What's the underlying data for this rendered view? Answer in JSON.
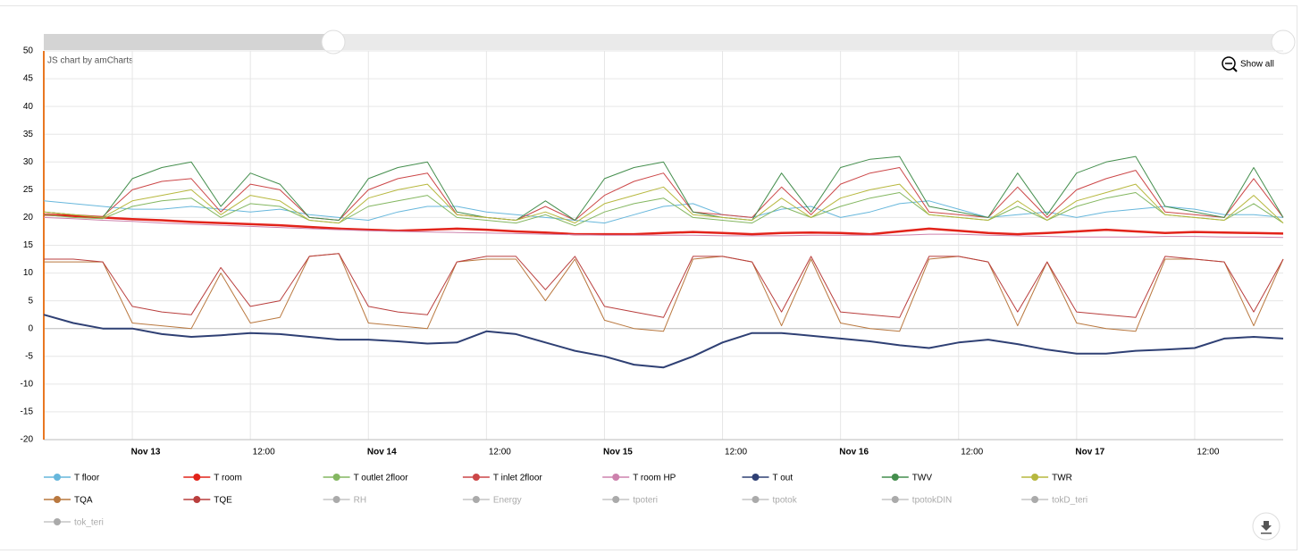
{
  "chart_data": {
    "type": "line",
    "credit": "JS chart by amCharts",
    "zoom_button": "Show all",
    "categories": [
      null,
      null,
      null,
      "Nov 13",
      null,
      null,
      null,
      "12:00",
      null,
      null,
      null,
      "Nov 14",
      null,
      null,
      null,
      "12:00",
      null,
      null,
      null,
      "Nov 15",
      null,
      null,
      null,
      "12:00",
      null,
      null,
      null,
      "Nov 16",
      null,
      null,
      null,
      "12:00",
      null,
      null,
      null,
      "Nov 17",
      null,
      null,
      null,
      "12:00",
      null,
      null,
      null
    ],
    "ylim": [
      -20,
      50
    ],
    "yticks": [
      -20,
      -15,
      -10,
      -5,
      0,
      5,
      10,
      15,
      20,
      25,
      30,
      35,
      40,
      45,
      50
    ],
    "grid": true,
    "series": [
      {
        "name": "T floor",
        "color": "#67b7dc",
        "values": [
          23,
          22.5,
          22,
          21.5,
          21.5,
          22,
          21.5,
          21,
          21.5,
          20.5,
          20,
          19.5,
          21,
          22,
          22,
          21,
          20.5,
          20,
          19.5,
          19,
          20.5,
          22,
          22.5,
          20.5,
          20,
          21.5,
          22,
          20,
          21,
          22.5,
          23,
          21.5,
          20,
          20.5,
          21,
          20,
          21,
          21.5,
          22,
          21.5,
          20.5,
          20.5,
          20
        ]
      },
      {
        "name": "T room",
        "color": "#e2231a",
        "values": [
          20.5,
          20.3,
          20,
          19.7,
          19.5,
          19.2,
          19,
          18.8,
          18.6,
          18.3,
          18,
          17.8,
          17.6,
          17.8,
          18,
          17.8,
          17.5,
          17.3,
          17,
          17,
          17,
          17.2,
          17.4,
          17.2,
          17,
          17.2,
          17.3,
          17.2,
          17,
          17.5,
          18,
          17.6,
          17.2,
          17,
          17.2,
          17.5,
          17.8,
          17.5,
          17.2,
          17.4,
          17.3,
          17.2,
          17.1
        ]
      },
      {
        "name": "T outlet 2floor",
        "color": "#84b761",
        "values": [
          20.5,
          20,
          19.8,
          22,
          23,
          23.5,
          20,
          22.5,
          22,
          19.5,
          19,
          22,
          23,
          24,
          20,
          19.5,
          19,
          20.5,
          18.5,
          21,
          22.5,
          23.5,
          20,
          19.5,
          19,
          22,
          20,
          22,
          23.5,
          24.5,
          20.5,
          20,
          19.5,
          22,
          19.5,
          22,
          23.5,
          24.5,
          20.5,
          20,
          19.5,
          22.5,
          19
        ]
      },
      {
        "name": "T inlet 2floor",
        "color": "#cc4748",
        "values": [
          21,
          20.5,
          20.2,
          25,
          26.5,
          27,
          21,
          26,
          25,
          20,
          19.5,
          25,
          27,
          28,
          20.5,
          20,
          19.5,
          22,
          19.5,
          24,
          26.5,
          28,
          21,
          20.5,
          20,
          25.5,
          20.5,
          26,
          28,
          29,
          21,
          20.5,
          20,
          25.5,
          20,
          25,
          27,
          28.5,
          21,
          20.5,
          20,
          27,
          20
        ]
      },
      {
        "name": "T room HP",
        "color": "#cd82ad",
        "values": [
          20,
          19.8,
          19.5,
          19.3,
          19,
          18.8,
          18.6,
          18.4,
          18.2,
          18,
          17.8,
          17.6,
          17.5,
          17.4,
          17.3,
          17.2,
          17.1,
          17,
          16.9,
          16.8,
          16.8,
          16.8,
          16.8,
          16.7,
          16.7,
          16.7,
          16.8,
          16.8,
          16.8,
          16.8,
          17,
          17,
          16.8,
          16.7,
          16.6,
          16.5,
          16.5,
          16.5,
          16.6,
          16.6,
          16.5,
          16.5,
          16.4
        ]
      },
      {
        "name": "T out",
        "color": "#2f4074",
        "values": [
          2.5,
          1,
          0,
          0,
          -1,
          -1.5,
          -1.2,
          -0.8,
          -1,
          -1.5,
          -2,
          -2,
          -2.3,
          -2.7,
          -2.5,
          -0.5,
          -1,
          -2.5,
          -4,
          -5,
          -6.5,
          -7,
          -5,
          -2.5,
          -0.8,
          -0.8,
          -1.3,
          -1.8,
          -2.3,
          -3,
          -3.5,
          -2.5,
          -2,
          -2.8,
          -3.8,
          -4.5,
          -4.5,
          -4,
          -3.8,
          -3.5,
          -1.8,
          -1.5,
          -1.8
        ]
      },
      {
        "name": "TWV",
        "color": "#448e4d",
        "values": [
          21,
          20.5,
          20,
          27,
          29,
          30,
          22,
          28,
          26,
          20,
          19.5,
          27,
          29,
          30,
          21,
          20,
          19.5,
          23,
          19.5,
          27,
          29,
          30,
          21,
          20,
          19.5,
          28,
          21,
          29,
          30.5,
          31,
          22,
          21,
          20,
          28,
          20.5,
          28,
          30,
          31,
          22,
          21,
          20,
          29,
          20
        ]
      },
      {
        "name": "TWR",
        "color": "#b7b83f",
        "values": [
          21,
          20.5,
          20,
          23,
          24,
          25,
          20.5,
          24,
          23,
          19.5,
          19,
          23.5,
          25,
          26,
          20.5,
          20,
          19.5,
          21,
          19,
          22.5,
          24,
          25.5,
          20.5,
          20,
          19.5,
          23.5,
          20,
          23.5,
          25,
          26,
          20.5,
          20,
          19.5,
          23,
          19.5,
          23,
          24.5,
          26,
          20.5,
          20,
          19.5,
          24,
          19
        ]
      },
      {
        "name": "TQA",
        "color": "#b9783f",
        "values": [
          12,
          12,
          12,
          1,
          0.5,
          0,
          10,
          1,
          2,
          13,
          13.5,
          1,
          0.5,
          0,
          12,
          12.5,
          12.5,
          5,
          12.5,
          1.5,
          0,
          -0.5,
          12.5,
          13,
          12,
          0.5,
          12.5,
          1,
          0,
          -0.5,
          12.5,
          13,
          12,
          0.5,
          12,
          1,
          0,
          -0.5,
          12.5,
          12.5,
          12,
          0.5,
          12.5
        ]
      },
      {
        "name": "TQE",
        "color": "#b93e3d",
        "values": [
          12.5,
          12.5,
          12,
          4,
          3,
          2.5,
          11,
          4,
          5,
          13,
          13.5,
          4,
          3,
          2.5,
          12,
          13,
          13,
          7,
          13,
          4,
          3,
          2,
          13,
          13,
          12,
          3,
          13,
          3,
          2.5,
          2,
          13,
          13,
          12,
          3,
          12,
          3,
          2.5,
          2,
          13,
          12.5,
          12,
          3,
          12.5
        ]
      },
      {
        "name": "RH",
        "color": "#aaaaaa",
        "hidden": true
      },
      {
        "name": "Energy",
        "color": "#aaaaaa",
        "hidden": true
      },
      {
        "name": "tpoteri",
        "color": "#aaaaaa",
        "hidden": true
      },
      {
        "name": "tpotok",
        "color": "#aaaaaa",
        "hidden": true
      },
      {
        "name": "tpotokDIN",
        "color": "#aaaaaa",
        "hidden": true
      },
      {
        "name": "tokD_teri",
        "color": "#aaaaaa",
        "hidden": true
      },
      {
        "name": "tok_teri",
        "color": "#aaaaaa",
        "hidden": true
      }
    ]
  }
}
